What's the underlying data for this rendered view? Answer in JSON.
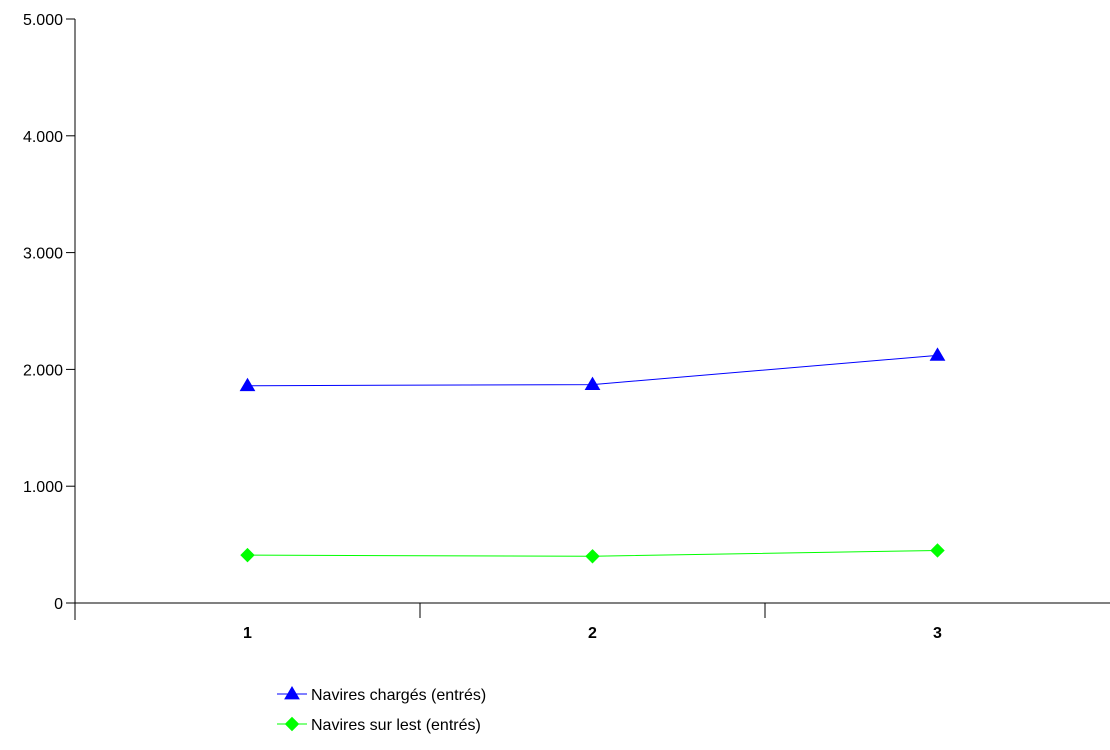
{
  "chart_data": {
    "type": "line",
    "title": "",
    "xlabel": "",
    "ylabel": "",
    "categories": [
      "1",
      "2",
      "3"
    ],
    "ylim": [
      0,
      5000
    ],
    "yticks": [
      0,
      1000,
      2000,
      3000,
      4000,
      5000
    ],
    "ytick_labels": [
      "0",
      "1.000",
      "2.000",
      "3.000",
      "4.000",
      "5.000"
    ],
    "grid": false,
    "legend_position": "bottom-center",
    "series": [
      {
        "name": "Navires chargés (entrés)",
        "values": [
          1860,
          1870,
          2120
        ],
        "color": "#0000ff",
        "marker": "triangle"
      },
      {
        "name": "Navires sur lest (entrés)",
        "values": [
          410,
          400,
          450
        ],
        "color": "#00ff00",
        "marker": "diamond"
      }
    ]
  }
}
